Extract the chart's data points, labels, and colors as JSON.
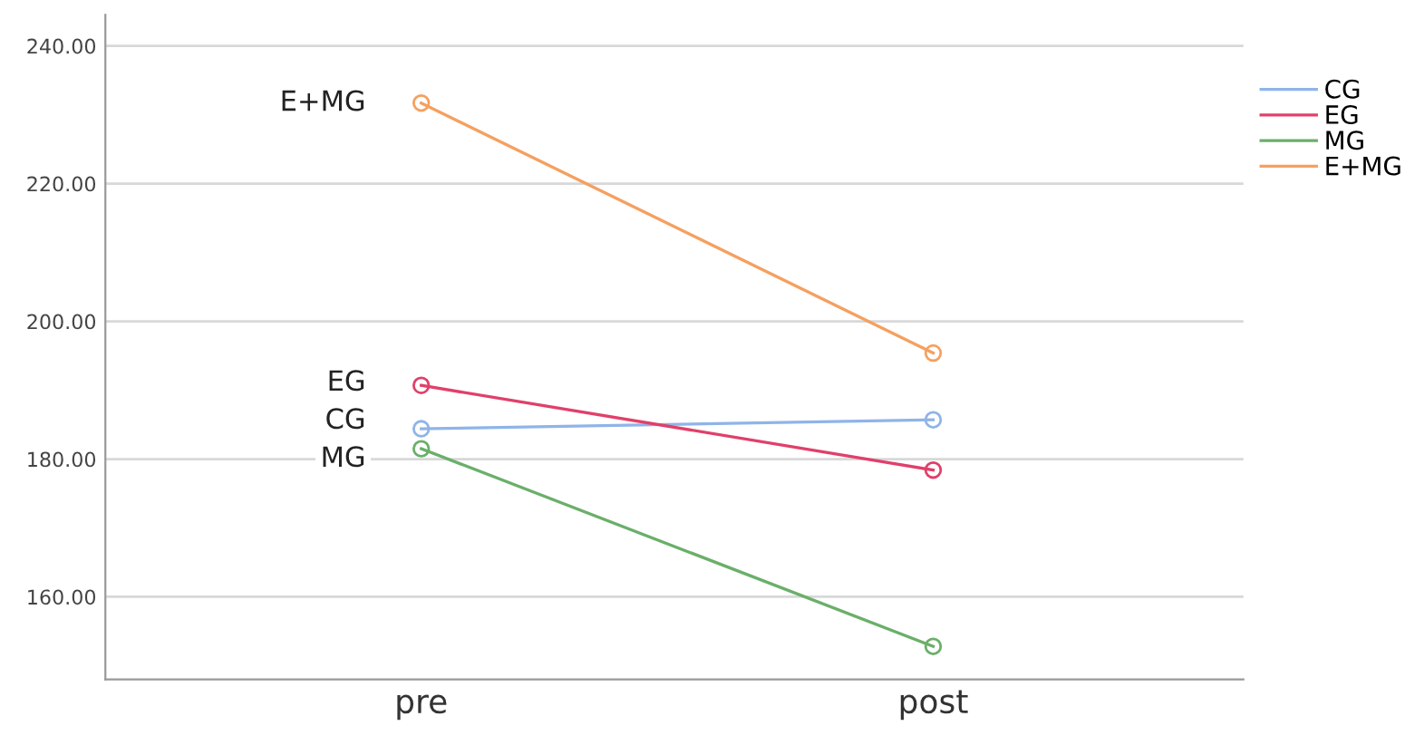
{
  "chart_data": {
    "type": "line",
    "categories": [
      "pre",
      "post"
    ],
    "series": [
      {
        "name": "CG",
        "color": "#8fb4e8",
        "values": [
          184.4,
          185.7
        ]
      },
      {
        "name": "EG",
        "color": "#e0406a",
        "values": [
          190.7,
          178.4
        ]
      },
      {
        "name": "MG",
        "color": "#6aaf6a",
        "values": [
          181.5,
          152.8
        ]
      },
      {
        "name": "E+MG",
        "color": "#f5a060",
        "values": [
          231.7,
          195.4
        ]
      }
    ],
    "ylim": [
      148,
      244.5
    ],
    "yticks": [
      {
        "value": 160,
        "label": "160.00"
      },
      {
        "value": 180,
        "label": "180.00"
      },
      {
        "value": 200,
        "label": "200.00"
      },
      {
        "value": 220,
        "label": "220.00"
      },
      {
        "value": 240,
        "label": "240.00"
      }
    ],
    "annotations": [
      {
        "text": "E+MG",
        "x": "pre",
        "y": 231.7
      },
      {
        "text": "EG",
        "x": "pre",
        "y": 190.7
      },
      {
        "text": "CG",
        "x": "pre",
        "y": 184.4
      },
      {
        "text": "MG",
        "x": "pre",
        "y": 181.5
      }
    ],
    "grid": "y",
    "legend": "top right",
    "marker": "circle",
    "line_style": "solid"
  }
}
